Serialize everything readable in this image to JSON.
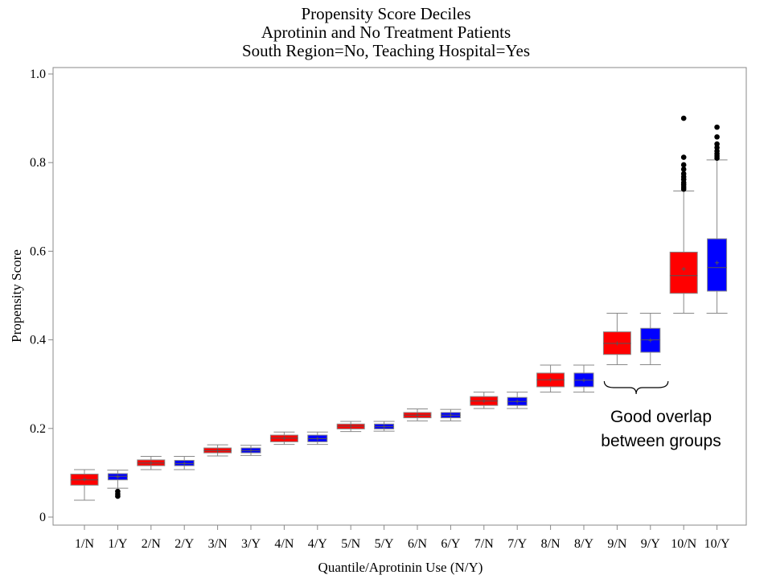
{
  "chart_data": {
    "type": "box",
    "title": [
      "Propensity Score Deciles",
      "Aprotinin and No Treatment Patients",
      "South Region=No, Teaching Hospital=Yes"
    ],
    "xlabel": "Quantile/Aprotinin Use (N/Y)",
    "ylabel": "Propensity Score",
    "ylim": [
      0,
      1.0
    ],
    "yticks": [
      {
        "v": 0,
        "label": "0"
      },
      {
        "v": 0.2,
        "label": "0.2"
      },
      {
        "v": 0.4,
        "label": "0.4"
      },
      {
        "v": 0.6,
        "label": "0.6"
      },
      {
        "v": 0.8,
        "label": "0.8"
      },
      {
        "v": 1.0,
        "label": "1.0"
      }
    ],
    "colors": {
      "N": "#ff0000",
      "Y": "#0000ff"
    },
    "boxes": [
      {
        "label": "1/N",
        "group": "N",
        "min": 0.038,
        "q1": 0.072,
        "median": 0.084,
        "q3": 0.097,
        "max": 0.107,
        "mean": 0.085,
        "outliers": []
      },
      {
        "label": "1/Y",
        "group": "Y",
        "min": 0.065,
        "q1": 0.084,
        "median": 0.092,
        "q3": 0.098,
        "max": 0.106,
        "mean": 0.091,
        "outliers": [
          0.047,
          0.052,
          0.058
        ]
      },
      {
        "label": "2/N",
        "group": "N",
        "min": 0.107,
        "q1": 0.116,
        "median": 0.122,
        "q3": 0.129,
        "max": 0.137,
        "mean": 0.122,
        "outliers": []
      },
      {
        "label": "2/Y",
        "group": "Y",
        "min": 0.107,
        "q1": 0.116,
        "median": 0.121,
        "q3": 0.128,
        "max": 0.137,
        "mean": 0.121,
        "outliers": []
      },
      {
        "label": "3/N",
        "group": "N",
        "min": 0.138,
        "q1": 0.145,
        "median": 0.15,
        "q3": 0.156,
        "max": 0.163,
        "mean": 0.15,
        "outliers": []
      },
      {
        "label": "3/Y",
        "group": "Y",
        "min": 0.139,
        "q1": 0.145,
        "median": 0.15,
        "q3": 0.156,
        "max": 0.162,
        "mean": 0.15,
        "outliers": []
      },
      {
        "label": "4/N",
        "group": "N",
        "min": 0.164,
        "q1": 0.17,
        "median": 0.178,
        "q3": 0.185,
        "max": 0.192,
        "mean": 0.178,
        "outliers": []
      },
      {
        "label": "4/Y",
        "group": "Y",
        "min": 0.164,
        "q1": 0.17,
        "median": 0.177,
        "q3": 0.185,
        "max": 0.192,
        "mean": 0.177,
        "outliers": []
      },
      {
        "label": "5/N",
        "group": "N",
        "min": 0.193,
        "q1": 0.199,
        "median": 0.205,
        "q3": 0.21,
        "max": 0.216,
        "mean": 0.205,
        "outliers": []
      },
      {
        "label": "5/Y",
        "group": "Y",
        "min": 0.194,
        "q1": 0.199,
        "median": 0.204,
        "q3": 0.21,
        "max": 0.216,
        "mean": 0.204,
        "outliers": []
      },
      {
        "label": "6/N",
        "group": "N",
        "min": 0.217,
        "q1": 0.224,
        "median": 0.23,
        "q3": 0.236,
        "max": 0.244,
        "mean": 0.23,
        "outliers": []
      },
      {
        "label": "6/Y",
        "group": "Y",
        "min": 0.217,
        "q1": 0.224,
        "median": 0.23,
        "q3": 0.236,
        "max": 0.243,
        "mean": 0.23,
        "outliers": []
      },
      {
        "label": "7/N",
        "group": "N",
        "min": 0.245,
        "q1": 0.252,
        "median": 0.262,
        "q3": 0.272,
        "max": 0.282,
        "mean": 0.262,
        "outliers": []
      },
      {
        "label": "7/Y",
        "group": "Y",
        "min": 0.245,
        "q1": 0.252,
        "median": 0.261,
        "q3": 0.27,
        "max": 0.282,
        "mean": 0.261,
        "outliers": []
      },
      {
        "label": "8/N",
        "group": "N",
        "min": 0.282,
        "q1": 0.294,
        "median": 0.31,
        "q3": 0.325,
        "max": 0.343,
        "mean": 0.31,
        "outliers": []
      },
      {
        "label": "8/Y",
        "group": "Y",
        "min": 0.282,
        "q1": 0.294,
        "median": 0.309,
        "q3": 0.325,
        "max": 0.343,
        "mean": 0.309,
        "outliers": []
      },
      {
        "label": "9/N",
        "group": "N",
        "min": 0.344,
        "q1": 0.367,
        "median": 0.392,
        "q3": 0.418,
        "max": 0.46,
        "mean": 0.392,
        "outliers": []
      },
      {
        "label": "9/Y",
        "group": "Y",
        "min": 0.344,
        "q1": 0.372,
        "median": 0.4,
        "q3": 0.426,
        "max": 0.46,
        "mean": 0.399,
        "outliers": []
      },
      {
        "label": "10/N",
        "group": "N",
        "min": 0.46,
        "q1": 0.505,
        "median": 0.545,
        "q3": 0.598,
        "max": 0.736,
        "mean": 0.56,
        "outliers": [
          0.74,
          0.745,
          0.75,
          0.755,
          0.762,
          0.768,
          0.775,
          0.785,
          0.795,
          0.812,
          0.9
        ]
      },
      {
        "label": "10/Y",
        "group": "Y",
        "min": 0.46,
        "q1": 0.51,
        "median": 0.563,
        "q3": 0.628,
        "max": 0.806,
        "mean": 0.574,
        "outliers": [
          0.81,
          0.815,
          0.82,
          0.826,
          0.834,
          0.842,
          0.858,
          0.88
        ]
      }
    ],
    "annotation": {
      "lines": [
        "Good overlap",
        "between groups"
      ],
      "from": 16,
      "to": 17
    }
  }
}
